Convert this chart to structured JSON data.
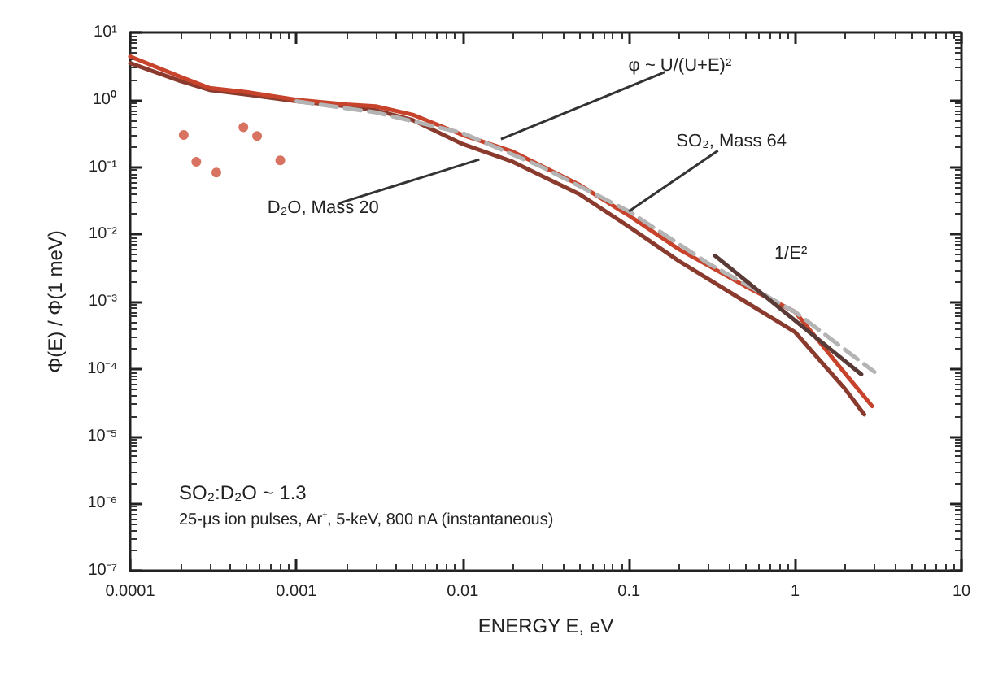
{
  "chart_data": {
    "type": "line",
    "xlabel": "ENERGY E, eV",
    "ylabel": "Φ(E) / Φ(1 meV)",
    "log": "xy",
    "grid": false,
    "marker": "none",
    "xlim": [
      0.0001,
      10
    ],
    "xticks": [
      0.0001,
      0.001,
      0.01,
      0.1,
      1,
      10
    ],
    "ylim": [
      1e-07,
      10
    ],
    "yticks": [
      {
        "value": 10,
        "label": "10¹"
      },
      {
        "value": 1,
        "label": "10⁰"
      },
      {
        "value": 0.1,
        "label": "10⁻¹"
      },
      {
        "value": 0.01,
        "label": "10⁻²"
      },
      {
        "value": 0.001,
        "label": "10⁻³"
      },
      {
        "value": 0.0001,
        "label": "10⁻⁴"
      },
      {
        "value": 1e-05,
        "label": "10⁻⁵"
      },
      {
        "value": 1e-06,
        "label": "10⁻⁶"
      },
      {
        "value": 1e-07,
        "label": "10⁻⁷"
      }
    ],
    "series": [
      {
        "color": "#8a3b2e",
        "line_style": "solid",
        "x": [
          0.0001,
          0.0002,
          0.0003,
          0.0005,
          0.001,
          0.002,
          0.003,
          0.005,
          0.01,
          0.02,
          0.05,
          0.1,
          0.2,
          0.5,
          1,
          2,
          2.6
        ],
        "values": [
          3.5,
          1.9,
          1.4,
          1.2,
          0.95,
          0.8,
          0.7,
          0.5,
          0.22,
          0.12,
          0.04,
          0.013,
          0.004,
          0.001,
          0.00035,
          5e-05,
          2.1e-05
        ]
      },
      {
        "color": "#c8432b",
        "line_style": "solid",
        "x": [
          0.0001,
          0.0002,
          0.0003,
          0.0005,
          0.001,
          0.002,
          0.003,
          0.005,
          0.01,
          0.02,
          0.05,
          0.1,
          0.2,
          0.5,
          1,
          2,
          2.9
        ],
        "values": [
          4.4,
          2.2,
          1.5,
          1.3,
          1.0,
          0.85,
          0.8,
          0.6,
          0.3,
          0.17,
          0.055,
          0.019,
          0.006,
          0.0017,
          0.0007,
          8.5e-05,
          2.8e-05
        ]
      },
      {
        "color": "#b4b4b4",
        "line_style": "dashed",
        "x": [
          0.001,
          0.003,
          0.01,
          0.03,
          0.1,
          0.3,
          1,
          3
        ],
        "values": [
          0.95,
          0.65,
          0.32,
          0.1,
          0.022,
          0.0037,
          0.0007,
          9e-05
        ]
      },
      {
        "color": "#5a3a36",
        "line_style": "solid",
        "x": [
          0.33,
          2.5
        ],
        "values": [
          0.0048,
          8.3e-05
        ]
      },
      {
        "type": "scatter",
        "marker": "circle",
        "color": "#d0503a",
        "x": [
          0.00021,
          0.00025,
          0.00033,
          0.0008,
          0.00058,
          0.00048
        ],
        "values": [
          0.3,
          0.12,
          0.083,
          0.126,
          0.29,
          0.39
        ]
      }
    ],
    "annotations": [
      {
        "text": "φ ~ U/(U+E)²",
        "x": 0.017,
        "y": 0.26
      },
      {
        "text": "SO₂, Mass 64",
        "x": 0.1,
        "y": 0.022
      },
      {
        "text": "D₂O, Mass 20",
        "x": 0.0126,
        "y": 0.13
      },
      {
        "text": "1/E²",
        "x": 0.5,
        "y": 0.0021
      },
      "SO₂:D₂O ~ 1.3",
      "25-μs ion pulses, Ar⁺, 5-keV, 800 nA (instantaneous)"
    ]
  }
}
